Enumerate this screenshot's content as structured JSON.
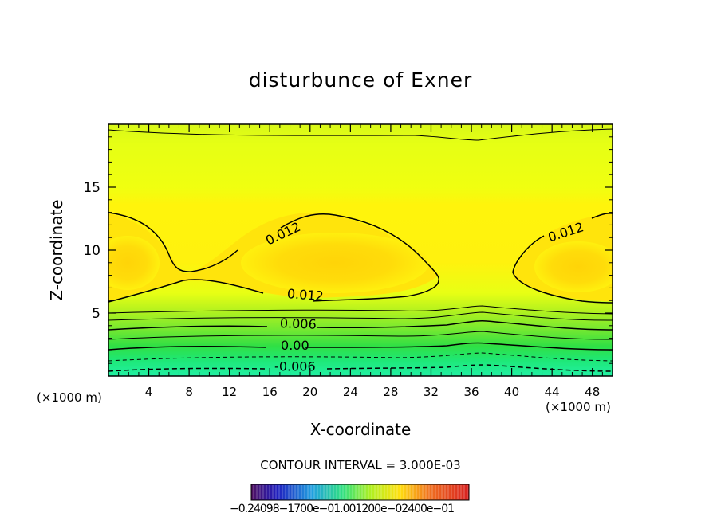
{
  "chart_data": {
    "type": "contour",
    "title": "disturbunce of Exner",
    "xlabel": "X-coordinate",
    "ylabel": "Z-coordinate",
    "x_unit_left": "(×1000 m)",
    "x_unit_right": "(×1000 m)",
    "xlim": [
      0,
      50
    ],
    "ylim": [
      0,
      20
    ],
    "x_ticks": [
      4,
      8,
      12,
      16,
      20,
      24,
      28,
      32,
      36,
      40,
      44,
      48
    ],
    "y_ticks": [
      5,
      10,
      15
    ],
    "contour_interval_text": "CONTOUR INTERVAL = 3.000E-03",
    "contour_labels": [
      {
        "text": "0.012",
        "x": 17.5,
        "y": 11.0
      },
      {
        "text": "0.012",
        "x": 19.5,
        "y": 6.1
      },
      {
        "text": "0.012",
        "x": 45.5,
        "y": 11.1
      },
      {
        "text": "0.006",
        "x": 18.8,
        "y": 3.8
      },
      {
        "text": "0.00",
        "x": 18.5,
        "y": 2.1
      },
      {
        "text": "-0.006",
        "x": 18.5,
        "y": 0.4
      }
    ],
    "colorbar_labels_text": "−0.24098−1700e−01.001200e−02400e−01",
    "grid": false,
    "colors": {
      "top": "#e4ff14",
      "core": "#ffd80a",
      "mid": "#ffee10",
      "green_light": "#a8f020",
      "green": "#3ee04a",
      "bottom": "#22f098"
    }
  }
}
